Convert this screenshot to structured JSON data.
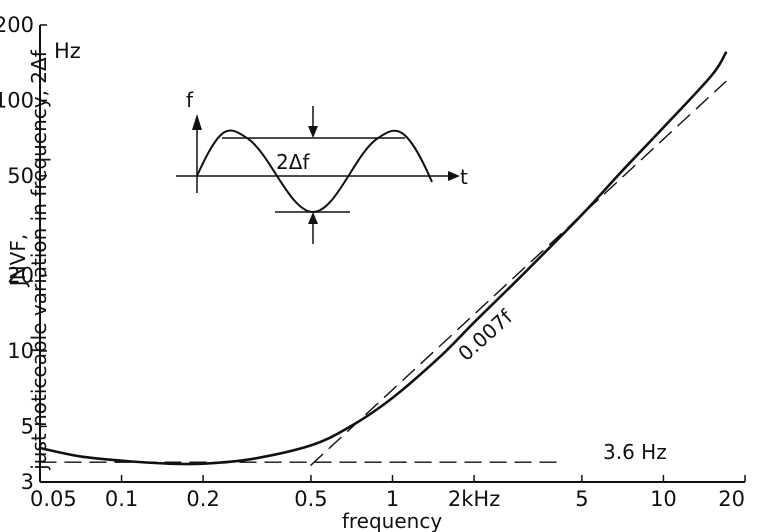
{
  "chart_data": {
    "type": "line",
    "title": "",
    "xlabel": "frequency",
    "ylabel": "JNVF, just noticeable variation in frequency, 2Δf",
    "y_unit": "Hz",
    "x_scale": "log",
    "y_scale": "log",
    "xlim": [
      0.05,
      20
    ],
    "ylim": [
      3,
      200
    ],
    "grid": false,
    "x_ticks": [
      {
        "value": 0.05,
        "label": "0.05"
      },
      {
        "value": 0.1,
        "label": "0.1"
      },
      {
        "value": 0.2,
        "label": "0.2"
      },
      {
        "value": 0.5,
        "label": "0.5"
      },
      {
        "value": 1,
        "label": "1"
      },
      {
        "value": 2,
        "label": "2kHz"
      },
      {
        "value": 5,
        "label": "5"
      },
      {
        "value": 10,
        "label": "10"
      },
      {
        "value": 20,
        "label": "20"
      }
    ],
    "y_ticks": [
      {
        "value": 3,
        "label": "3"
      },
      {
        "value": 5,
        "label": "5"
      },
      {
        "value": 10,
        "label": "10"
      },
      {
        "value": 20,
        "label": "20"
      },
      {
        "value": 50,
        "label": "50"
      },
      {
        "value": 100,
        "label": "100"
      },
      {
        "value": 200,
        "label": "200"
      }
    ],
    "series": [
      {
        "style": "solid",
        "x": [
          0.05,
          0.07,
          0.1,
          0.15,
          0.2,
          0.3,
          0.5,
          0.7,
          1,
          1.5,
          2,
          3,
          5,
          7,
          10,
          15,
          17
        ],
        "y": [
          4.1,
          3.8,
          3.65,
          3.55,
          3.55,
          3.7,
          4.2,
          5.0,
          6.5,
          9.5,
          13,
          20,
          35,
          52,
          78,
          125,
          155
        ]
      },
      {
        "style": "dashed",
        "label": "0.007f",
        "x": [
          0.5,
          1,
          2,
          5,
          10,
          17
        ],
        "y": [
          3.5,
          7,
          14,
          35,
          70,
          119
        ]
      },
      {
        "style": "dashed",
        "label": "3.6 Hz",
        "x": [
          0.05,
          1.5,
          4.2
        ],
        "y": [
          3.6,
          3.6,
          3.6
        ]
      }
    ],
    "annotations": {
      "slope_label": "0.007f",
      "floor_label": "3.6 Hz"
    },
    "inset": {
      "y_axis_label": "f",
      "x_axis_label": "t",
      "amplitude_label": "2Δf"
    }
  }
}
